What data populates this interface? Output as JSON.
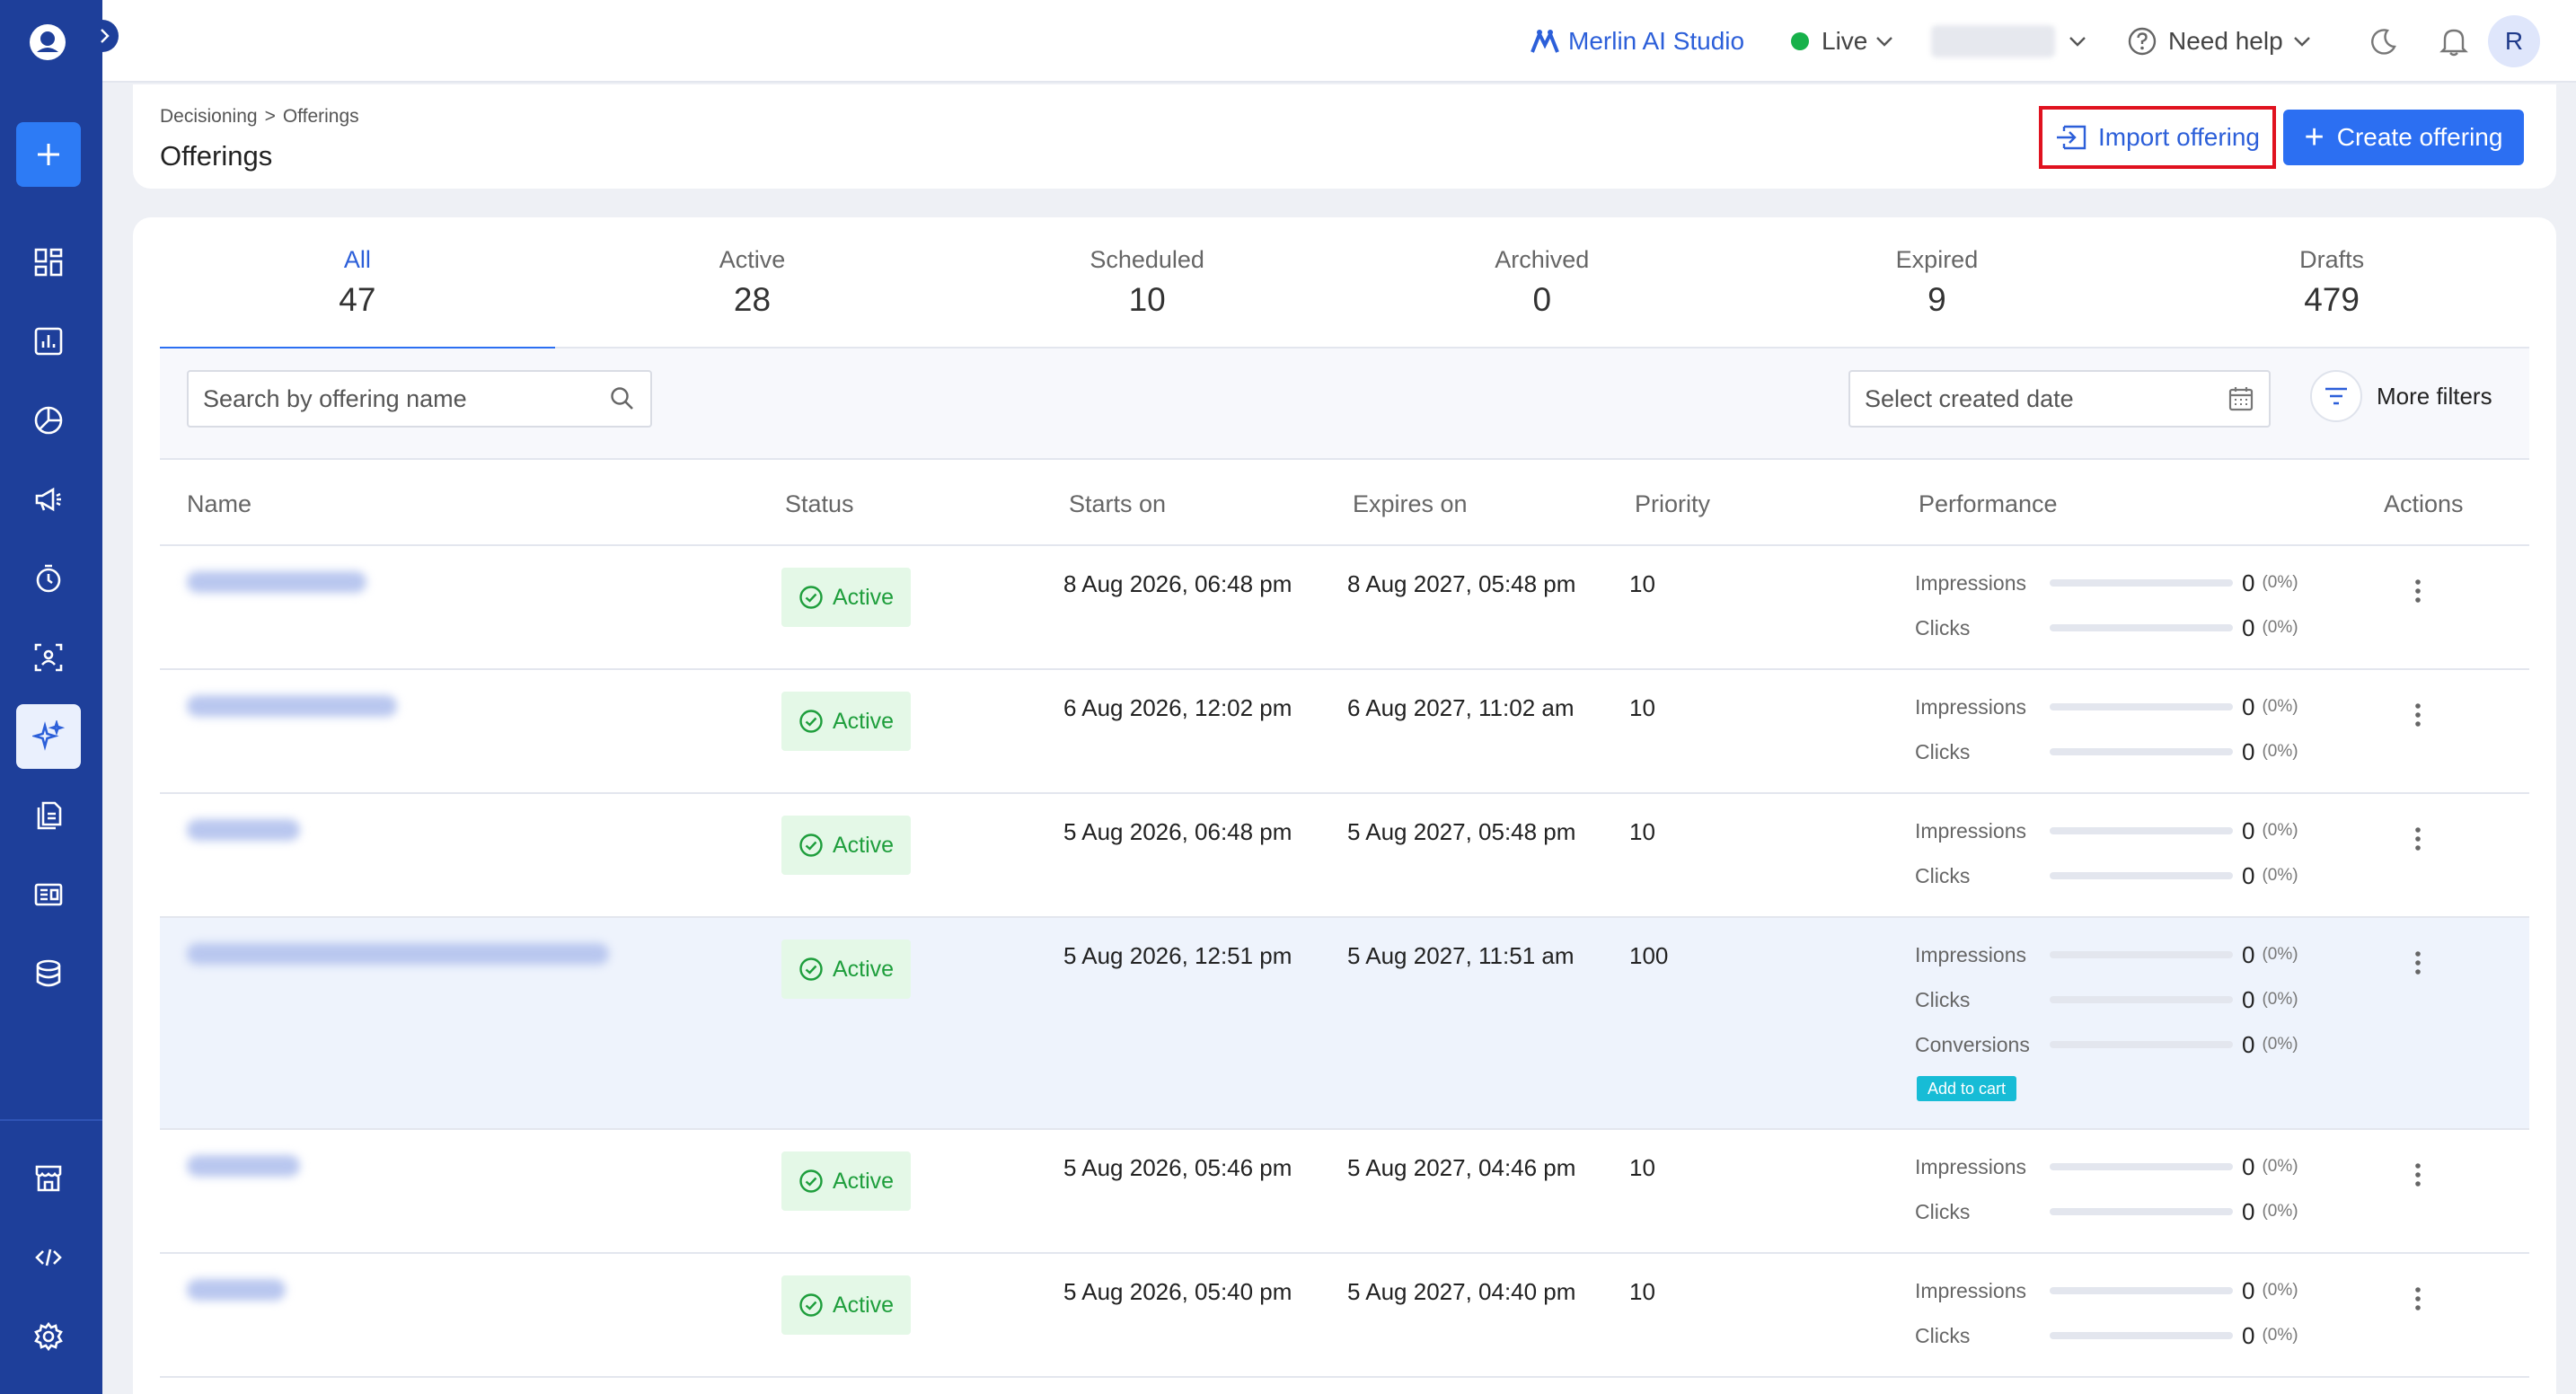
{
  "topbar": {
    "studio_label": "Merlin AI Studio",
    "env_label": "Live",
    "help_label": "Need help",
    "avatar_initial": "R"
  },
  "header": {
    "breadcrumb": [
      "Decisioning",
      ">",
      "Offerings"
    ],
    "title": "Offerings",
    "import_label": "Import offering",
    "create_label": "Create offering"
  },
  "tabs": [
    {
      "label": "All",
      "count": "47"
    },
    {
      "label": "Active",
      "count": "28"
    },
    {
      "label": "Scheduled",
      "count": "10"
    },
    {
      "label": "Archived",
      "count": "0"
    },
    {
      "label": "Expired",
      "count": "9"
    },
    {
      "label": "Drafts",
      "count": "479"
    }
  ],
  "filters": {
    "search_placeholder": "Search by offering name",
    "date_placeholder": "Select created date",
    "more_filters_label": "More filters"
  },
  "table": {
    "columns": [
      "Name",
      "Status",
      "Starts on",
      "Expires on",
      "Priority",
      "Performance",
      "Actions"
    ],
    "rows": [
      {
        "status": "Active",
        "starts_on": "8 Aug 2026, 06:48 pm",
        "expires_on": "8 Aug 2027, 05:48 pm",
        "priority": "10",
        "performance": [
          {
            "label": "Impressions",
            "value": "0",
            "pct": "(0%)"
          },
          {
            "label": "Clicks",
            "value": "0",
            "pct": "(0%)"
          }
        ]
      },
      {
        "status": "Active",
        "starts_on": "6 Aug 2026, 12:02 pm",
        "expires_on": "6 Aug 2027, 11:02 am",
        "priority": "10",
        "performance": [
          {
            "label": "Impressions",
            "value": "0",
            "pct": "(0%)"
          },
          {
            "label": "Clicks",
            "value": "0",
            "pct": "(0%)"
          }
        ]
      },
      {
        "status": "Active",
        "starts_on": "5 Aug 2026, 06:48 pm",
        "expires_on": "5 Aug 2027, 05:48 pm",
        "priority": "10",
        "performance": [
          {
            "label": "Impressions",
            "value": "0",
            "pct": "(0%)"
          },
          {
            "label": "Clicks",
            "value": "0",
            "pct": "(0%)"
          }
        ]
      },
      {
        "status": "Active",
        "starts_on": "5 Aug 2026, 12:51 pm",
        "expires_on": "5 Aug 2027, 11:51 am",
        "priority": "100",
        "performance": [
          {
            "label": "Impressions",
            "value": "0",
            "pct": "(0%)"
          },
          {
            "label": "Clicks",
            "value": "0",
            "pct": "(0%)"
          },
          {
            "label": "Conversions",
            "value": "0",
            "pct": "(0%)"
          }
        ],
        "conversion_tag": "Add to cart"
      },
      {
        "status": "Active",
        "starts_on": "5 Aug 2026, 05:46 pm",
        "expires_on": "5 Aug 2027, 04:46 pm",
        "priority": "10",
        "performance": [
          {
            "label": "Impressions",
            "value": "0",
            "pct": "(0%)"
          },
          {
            "label": "Clicks",
            "value": "0",
            "pct": "(0%)"
          }
        ]
      },
      {
        "status": "Active",
        "starts_on": "5 Aug 2026, 05:40 pm",
        "expires_on": "5 Aug 2027, 04:40 pm",
        "priority": "10",
        "performance": [
          {
            "label": "Impressions",
            "value": "0",
            "pct": "(0%)"
          },
          {
            "label": "Clicks",
            "value": "0",
            "pct": "(0%)"
          }
        ]
      }
    ]
  },
  "sidebar": {
    "icons": [
      "dashboard-icon",
      "analytics-icon",
      "segments-icon",
      "campaigns-icon",
      "journeys-icon",
      "audience-icon",
      "decisioning-icon",
      "content-icon",
      "templates-icon",
      "data-icon",
      "store-icon",
      "developer-icon",
      "settings-icon"
    ]
  },
  "colors": {
    "sidebar": "#1e3f9a",
    "primary": "#2c6ff2",
    "active_status": "#1e9e3c",
    "highlight_border": "#e0121f"
  }
}
